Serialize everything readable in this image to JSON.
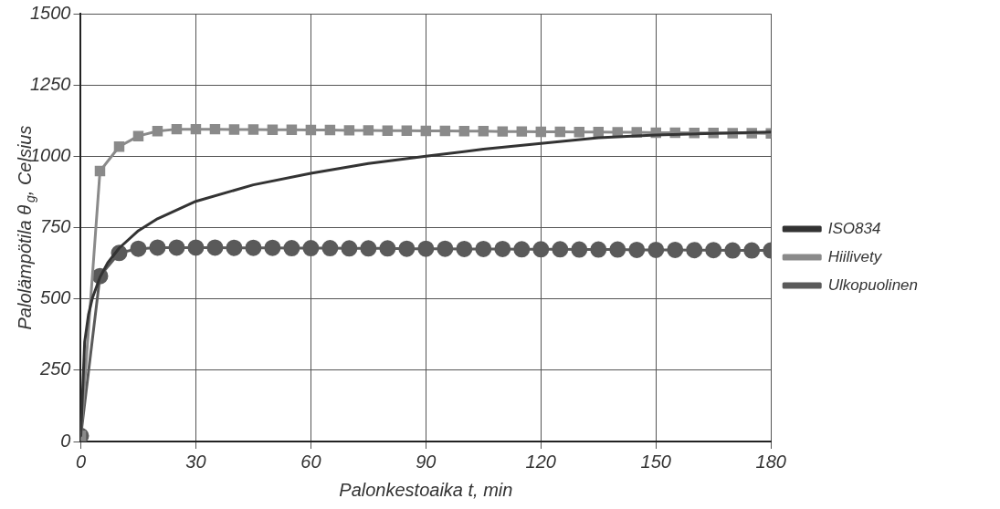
{
  "chart_data": {
    "type": "line",
    "xlabel": "Palonkestoaika t, min",
    "ylabel": "Palolämpötila θ$_{g}$, Celsius",
    "xlim": [
      0,
      180
    ],
    "xticks": [
      0,
      30,
      60,
      90,
      120,
      150,
      180
    ],
    "ylim": [
      0,
      1500
    ],
    "yticks": [
      0,
      250,
      500,
      750,
      1000,
      1250,
      1500
    ],
    "grid": true,
    "legend": "right",
    "line_style": "solid",
    "series": [
      {
        "name": "ISO834",
        "color": "#333333",
        "marker": "none",
        "x": [
          0,
          1,
          2,
          3,
          5,
          7,
          10,
          15,
          20,
          30,
          45,
          60,
          75,
          90,
          105,
          120,
          135,
          150,
          165,
          180
        ],
        "values": [
          20,
          349,
          445,
          502,
          576,
          626,
          678,
          739,
          781,
          842,
          900,
          940,
          975,
          1000,
          1025,
          1045,
          1065,
          1075,
          1080,
          1085
        ]
      },
      {
        "name": "Hiilivety",
        "color": "#8a8a8a",
        "marker": "square",
        "x": [
          0,
          5,
          10,
          15,
          20,
          25,
          30,
          35,
          40,
          45,
          50,
          55,
          60,
          65,
          70,
          75,
          80,
          85,
          90,
          95,
          100,
          105,
          110,
          115,
          120,
          125,
          130,
          135,
          140,
          145,
          150,
          155,
          160,
          165,
          170,
          175,
          180
        ],
        "values": [
          20,
          948,
          1034,
          1071,
          1088,
          1095,
          1095,
          1095,
          1094,
          1094,
          1093,
          1093,
          1092,
          1092,
          1091,
          1091,
          1090,
          1090,
          1089,
          1089,
          1088,
          1088,
          1087,
          1087,
          1086,
          1086,
          1085,
          1085,
          1084,
          1084,
          1083,
          1083,
          1082,
          1082,
          1081,
          1081,
          1080
        ]
      },
      {
        "name": "Ulkopuolinen",
        "color": "#5a5a5a",
        "marker": "circle",
        "x": [
          0,
          5,
          10,
          15,
          20,
          25,
          30,
          35,
          40,
          45,
          50,
          55,
          60,
          65,
          70,
          75,
          80,
          85,
          90,
          95,
          100,
          105,
          110,
          115,
          120,
          125,
          130,
          135,
          140,
          145,
          150,
          155,
          160,
          165,
          170,
          175,
          180
        ],
        "values": [
          20,
          580,
          661,
          676,
          680,
          680,
          680,
          680,
          679,
          679,
          679,
          678,
          678,
          678,
          677,
          677,
          677,
          676,
          676,
          676,
          675,
          675,
          675,
          674,
          674,
          674,
          673,
          673,
          673,
          672,
          672,
          672,
          671,
          671,
          670,
          670,
          670
        ]
      }
    ]
  }
}
